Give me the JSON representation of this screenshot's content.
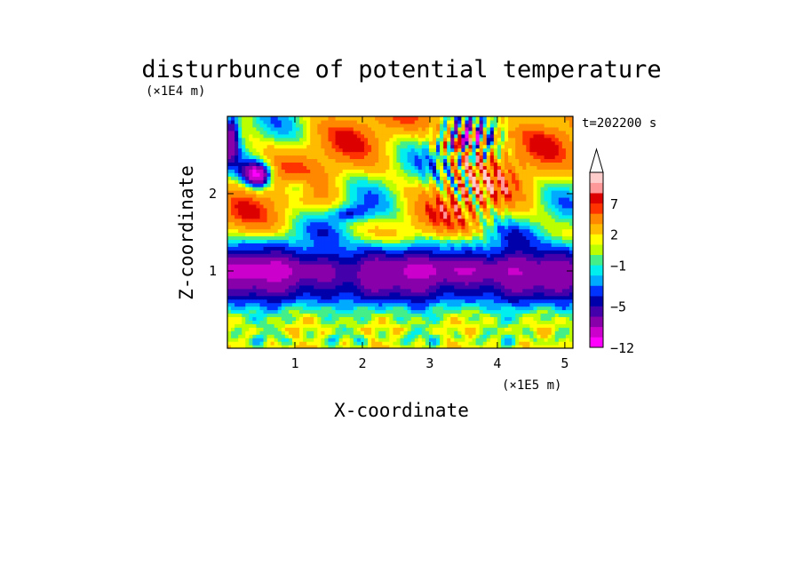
{
  "chart_data": {
    "type": "heatmap",
    "title": "disturbunce of potential temperature",
    "xlabel": "X-coordinate",
    "ylabel": "Z-coordinate",
    "x_unit": "(×1E5 m)",
    "y_unit": "(×1E4 m)",
    "time_label": "t=202200 s",
    "xlim": [
      0,
      5.12
    ],
    "ylim": [
      0,
      3.0
    ],
    "x_ticks": [
      {
        "value": 1,
        "label": "1"
      },
      {
        "value": 2,
        "label": "2"
      },
      {
        "value": 3,
        "label": "3"
      },
      {
        "value": 4,
        "label": "4"
      },
      {
        "value": 5,
        "label": "5"
      }
    ],
    "y_ticks": [
      {
        "value": 1,
        "label": "1"
      },
      {
        "value": 2,
        "label": "2"
      }
    ],
    "colorbar": {
      "levels": [
        -12,
        -10,
        -8,
        -6,
        -5,
        -4,
        -3,
        -2,
        -1,
        0,
        1,
        2,
        4,
        6,
        7,
        9,
        11
      ],
      "colors": [
        "#ff00ff",
        "#cc00cc",
        "#8800aa",
        "#4400aa",
        "#0000aa",
        "#0033ff",
        "#00aaff",
        "#00eeee",
        "#44ee88",
        "#bbff00",
        "#ffff00",
        "#ffbb00",
        "#ff8800",
        "#ff3300",
        "#dd0000",
        "#ff9999",
        "#ffcccc"
      ],
      "labels": [
        {
          "value": -12,
          "label": "−12"
        },
        {
          "value": -5,
          "label": "−5"
        },
        {
          "value": -1,
          "label": "−1"
        },
        {
          "value": 2,
          "label": "2"
        },
        {
          "value": 7,
          "label": "7"
        }
      ],
      "extend": "max"
    }
  }
}
